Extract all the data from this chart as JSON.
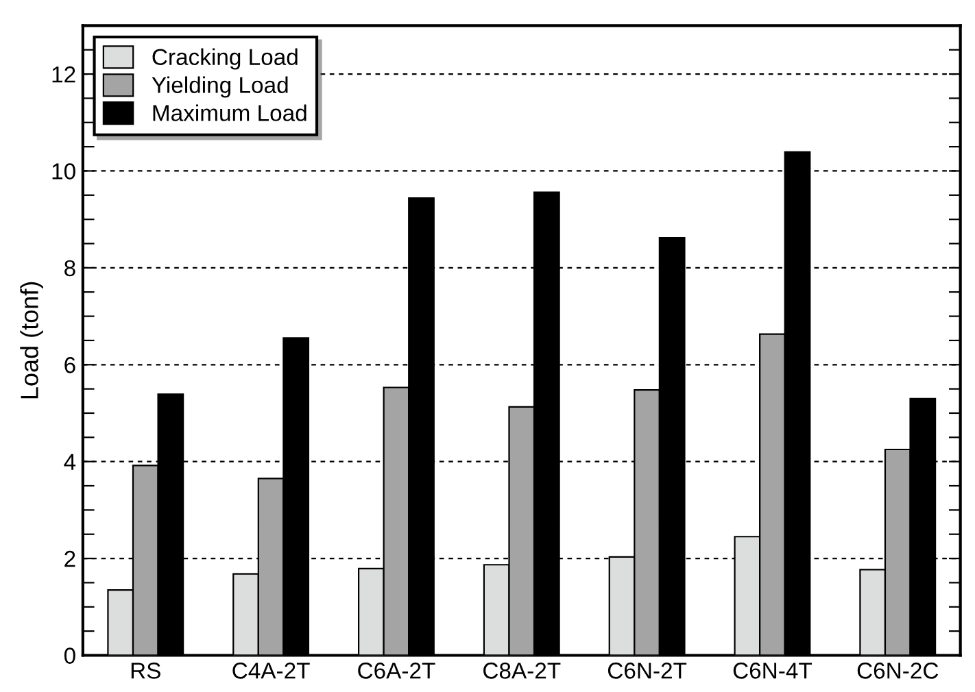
{
  "chart_data": {
    "type": "bar",
    "ylabel": "Load (tonf)",
    "categories": [
      "RS",
      "C4A-2T",
      "C6A-2T",
      "C8A-2T",
      "C6N-2T",
      "C6N-4T",
      "C6N-2C"
    ],
    "series": [
      {
        "name": "Cracking Load",
        "color": "#dcdedd",
        "values": [
          1.35,
          1.68,
          1.79,
          1.87,
          2.03,
          2.45,
          1.77
        ]
      },
      {
        "name": "Yielding Load",
        "color": "#a4a4a4",
        "values": [
          3.92,
          3.65,
          5.53,
          5.13,
          5.48,
          6.63,
          4.25
        ]
      },
      {
        "name": "Maximum Load",
        "color": "#000000",
        "values": [
          5.39,
          6.55,
          9.44,
          9.56,
          8.62,
          10.39,
          5.3
        ]
      }
    ],
    "ylim": [
      0,
      13
    ],
    "yticks": [
      0,
      {
        "value": 0.5,
        "label": null
      },
      {
        "value": 1,
        "label": null
      },
      {
        "value": 1.5,
        "label": null
      },
      2,
      {
        "value": 2.5,
        "label": null
      },
      {
        "value": 3,
        "label": null
      },
      {
        "value": 3.5,
        "label": null
      },
      4,
      {
        "value": 4.5,
        "label": null
      },
      {
        "value": 5,
        "label": null
      },
      {
        "value": 5.5,
        "label": null
      },
      6,
      {
        "value": 6.5,
        "label": null
      },
      {
        "value": 7,
        "label": null
      },
      {
        "value": 7.5,
        "label": null
      },
      8,
      {
        "value": 8.5,
        "label": null
      },
      {
        "value": 9,
        "label": null
      },
      {
        "value": 9.5,
        "label": null
      },
      10,
      {
        "value": 10.5,
        "label": null
      },
      {
        "value": 11,
        "label": null
      },
      {
        "value": 11.5,
        "label": null
      },
      12,
      {
        "value": 12.5,
        "label": null
      }
    ],
    "grid": "y",
    "legend": "top left"
  }
}
